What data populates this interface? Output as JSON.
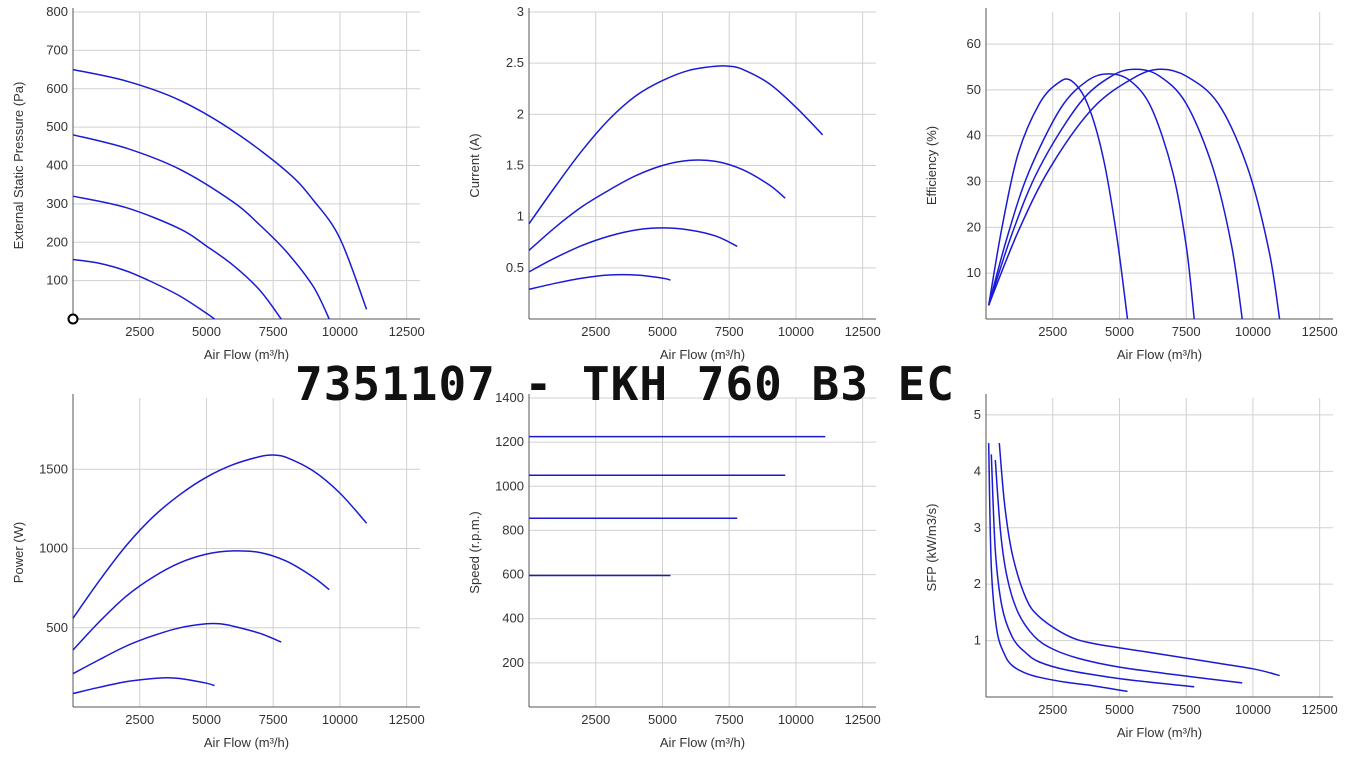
{
  "title": "7351107 - TKH 760 B3 EC",
  "chart_data": [
    {
      "type": "line",
      "xlabel": "Air Flow (m³/h)",
      "ylabel": "External Static Pressure (Pa)",
      "xlim": [
        0,
        13000
      ],
      "ylim": [
        0,
        800
      ],
      "xticks": [
        2500,
        5000,
        7500,
        10000,
        12500
      ],
      "yticks": [
        100,
        200,
        300,
        400,
        500,
        600,
        700,
        800
      ],
      "grid": true,
      "marker_point": {
        "x": 0,
        "y": 0
      },
      "series": [
        {
          "x": [
            0,
            1000,
            2000,
            3000,
            4000,
            5000,
            5300
          ],
          "y": [
            155,
            145,
            125,
            95,
            60,
            15,
            0
          ]
        },
        {
          "x": [
            0,
            2000,
            4000,
            5000,
            6000,
            7000,
            7800
          ],
          "y": [
            320,
            290,
            235,
            190,
            140,
            75,
            0
          ]
        },
        {
          "x": [
            0,
            2000,
            4000,
            6000,
            7000,
            8000,
            9000,
            9600
          ],
          "y": [
            480,
            445,
            390,
            305,
            245,
            175,
            85,
            0
          ]
        },
        {
          "x": [
            0,
            2000,
            4000,
            6000,
            8000,
            9000,
            10000,
            11000
          ],
          "y": [
            650,
            620,
            570,
            490,
            385,
            310,
            210,
            25
          ]
        }
      ]
    },
    {
      "type": "line",
      "xlabel": "Air Flow (m³/h)",
      "ylabel": "Current (A)",
      "xlim": [
        0,
        13000
      ],
      "ylim": [
        0,
        3
      ],
      "xticks": [
        2500,
        5000,
        7500,
        10000,
        12500
      ],
      "yticks": [
        0.5,
        1,
        1.5,
        2,
        2.5,
        3
      ],
      "grid": true,
      "series": [
        {
          "x": [
            0,
            1000,
            2000,
            3000,
            4000,
            5000,
            5300
          ],
          "y": [
            0.29,
            0.35,
            0.4,
            0.43,
            0.43,
            0.4,
            0.38
          ]
        },
        {
          "x": [
            0,
            1000,
            2000,
            3000,
            4000,
            5000,
            6000,
            7000,
            7800
          ],
          "y": [
            0.46,
            0.6,
            0.72,
            0.81,
            0.87,
            0.89,
            0.87,
            0.81,
            0.71
          ]
        },
        {
          "x": [
            0,
            1000,
            2000,
            3000,
            4000,
            5000,
            6000,
            7000,
            8000,
            9000,
            9600
          ],
          "y": [
            0.67,
            0.9,
            1.1,
            1.26,
            1.4,
            1.5,
            1.55,
            1.54,
            1.46,
            1.31,
            1.18
          ]
        },
        {
          "x": [
            0,
            1000,
            2000,
            3000,
            4000,
            5000,
            6000,
            7000,
            7500,
            8000,
            9000,
            10000,
            11000
          ],
          "y": [
            0.93,
            1.3,
            1.65,
            1.95,
            2.18,
            2.33,
            2.43,
            2.47,
            2.47,
            2.44,
            2.3,
            2.07,
            1.8
          ]
        }
      ]
    },
    {
      "type": "line",
      "xlabel": "Air Flow (m³/h)",
      "ylabel": "Efficiency (%)",
      "xlim": [
        0,
        13000
      ],
      "ylim": [
        0,
        67
      ],
      "xticks": [
        2500,
        5000,
        7500,
        10000,
        12500
      ],
      "yticks": [
        10,
        20,
        30,
        40,
        50,
        60
      ],
      "grid": true,
      "series": [
        {
          "x": [
            100,
            600,
            1200,
            2000,
            2700,
            3200,
            3800,
            4400,
            4900,
            5300
          ],
          "y": [
            3,
            20,
            36,
            47,
            51.5,
            52,
            47,
            35,
            18,
            0
          ]
        },
        {
          "x": [
            100,
            800,
            1600,
            2800,
            3800,
            4600,
            5400,
            6200,
            7000,
            7500,
            7800
          ],
          "y": [
            3,
            18,
            32,
            46,
            52,
            53.5,
            52,
            46,
            32,
            16,
            0
          ]
        },
        {
          "x": [
            100,
            1000,
            2000,
            3500,
            4700,
            5600,
            6500,
            7500,
            8500,
            9200,
            9600
          ],
          "y": [
            3,
            19,
            33,
            47,
            53,
            54.5,
            53,
            47,
            33,
            16,
            0
          ]
        },
        {
          "x": [
            100,
            1200,
            2400,
            4000,
            5500,
            6500,
            7500,
            8700,
            9800,
            10600,
            11000
          ],
          "y": [
            3,
            19,
            33,
            46,
            52.5,
            54.5,
            53,
            47,
            33,
            15,
            0
          ]
        }
      ]
    },
    {
      "type": "line",
      "xlabel": "Air Flow (m³/h)",
      "ylabel": "Power (W)",
      "xlim": [
        0,
        13000
      ],
      "ylim": [
        0,
        1950
      ],
      "xticks": [
        2500,
        5000,
        7500,
        10000,
        12500
      ],
      "yticks": [
        500,
        1000,
        1500
      ],
      "grid": true,
      "series": [
        {
          "x": [
            0,
            1000,
            2000,
            3000,
            3500,
            4000,
            5000,
            5300
          ],
          "y": [
            85,
            125,
            160,
            180,
            185,
            180,
            150,
            135
          ]
        },
        {
          "x": [
            0,
            1000,
            2000,
            3000,
            4000,
            5000,
            5500,
            6000,
            7000,
            7800
          ],
          "y": [
            210,
            300,
            385,
            450,
            500,
            525,
            525,
            510,
            465,
            410
          ]
        },
        {
          "x": [
            0,
            1000,
            2000,
            3000,
            4000,
            5000,
            6000,
            7000,
            8000,
            9000,
            9600
          ],
          "y": [
            360,
            540,
            700,
            820,
            910,
            965,
            985,
            975,
            920,
            820,
            740
          ]
        },
        {
          "x": [
            0,
            1000,
            2000,
            3000,
            4000,
            5000,
            6000,
            7000,
            7500,
            8000,
            9000,
            10000,
            11000
          ],
          "y": [
            560,
            800,
            1020,
            1200,
            1340,
            1450,
            1530,
            1580,
            1590,
            1575,
            1490,
            1350,
            1160
          ]
        }
      ]
    },
    {
      "type": "line",
      "xlabel": "Air Flow (m³/h)",
      "ylabel": "Speed (r.p.m.)",
      "xlim": [
        0,
        13000
      ],
      "ylim": [
        0,
        1400
      ],
      "xticks": [
        2500,
        5000,
        7500,
        10000,
        12500
      ],
      "yticks": [
        200,
        400,
        600,
        800,
        1000,
        1200,
        1400
      ],
      "grid": true,
      "series": [
        {
          "x": [
            0,
            5300
          ],
          "y": [
            596,
            596
          ]
        },
        {
          "x": [
            0,
            7800
          ],
          "y": [
            855,
            855
          ]
        },
        {
          "x": [
            0,
            9600
          ],
          "y": [
            1050,
            1050
          ]
        },
        {
          "x": [
            0,
            11100
          ],
          "y": [
            1225,
            1225
          ]
        }
      ]
    },
    {
      "type": "line",
      "xlabel": "Air Flow (m³/h)",
      "ylabel": "SFP (kW/m3/s)",
      "xlim": [
        0,
        13000
      ],
      "ylim": [
        0,
        5.3
      ],
      "xticks": [
        2500,
        5000,
        7500,
        10000,
        12500
      ],
      "yticks": [
        1,
        2,
        3,
        4,
        5
      ],
      "grid": true,
      "series": [
        {
          "x": [
            100,
            200,
            400,
            700,
            1000,
            1500,
            2000,
            3000,
            4000,
            5300
          ],
          "y": [
            4.5,
            2.3,
            1.2,
            0.75,
            0.55,
            0.42,
            0.35,
            0.26,
            0.2,
            0.1
          ]
        },
        {
          "x": [
            200,
            350,
            600,
            1000,
            1500,
            2000,
            3000,
            4500,
            6000,
            7800
          ],
          "y": [
            4.3,
            2.6,
            1.6,
            1.05,
            0.78,
            0.62,
            0.48,
            0.36,
            0.27,
            0.18
          ]
        },
        {
          "x": [
            350,
            550,
            800,
            1200,
            1800,
            2500,
            3500,
            5000,
            7000,
            9600
          ],
          "y": [
            4.2,
            2.9,
            2.1,
            1.5,
            1.08,
            0.85,
            0.68,
            0.53,
            0.4,
            0.25
          ]
        },
        {
          "x": [
            500,
            700,
            1000,
            1500,
            2000,
            3000,
            4000,
            6000,
            8000,
            10000,
            11000
          ],
          "y": [
            4.5,
            3.4,
            2.5,
            1.75,
            1.42,
            1.1,
            0.95,
            0.8,
            0.65,
            0.5,
            0.38
          ]
        }
      ]
    }
  ]
}
